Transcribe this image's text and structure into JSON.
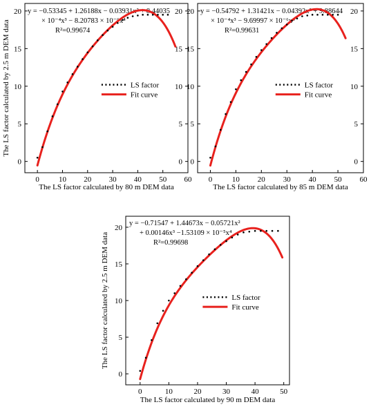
{
  "chart_data": [
    {
      "type": "line",
      "xlabel": "The LS factor calculated by 80 m DEM data",
      "ylabel": "The LS factor calculated by 2.5 m DEM data",
      "xlim": [
        -5,
        60
      ],
      "ylim": [
        -1.5,
        21
      ],
      "xticks": [
        0,
        10,
        20,
        30,
        40,
        50,
        60
      ],
      "yticks": [
        0,
        5,
        10,
        15,
        20
      ],
      "right_axis_ticks": [
        0,
        5,
        10,
        15,
        20
      ],
      "equation_line1": "y = −0.53345 + 1.26188x − 0.03931x² + 8.44035",
      "equation_line2": "× 10⁻⁴x³ − 8.20783 × 10⁻⁶x⁴",
      "r2": "R²=0.99674",
      "legend": [
        "LS factor",
        "Fit curve"
      ],
      "legend_position": "center-right",
      "coef": [
        -0.53345,
        1.26188,
        -0.03931,
        0.000844035,
        -8.20783e-06
      ],
      "fit_x_range": [
        0,
        55
      ],
      "series": [
        {
          "name": "LS factor",
          "style": "dotted",
          "color": "#000000",
          "x": [
            0,
            2,
            4,
            6,
            8,
            10,
            12,
            14,
            16,
            18,
            20,
            22,
            24,
            26,
            28,
            30,
            32,
            34,
            36,
            38,
            40,
            42,
            44,
            46,
            48,
            50,
            52
          ],
          "y": [
            0.5,
            1.9,
            4.0,
            6.0,
            7.6,
            9.3,
            10.5,
            11.6,
            12.6,
            13.6,
            14.5,
            15.3,
            16.1,
            16.8,
            17.4,
            17.9,
            18.4,
            18.8,
            19.1,
            19.3,
            19.4,
            19.5,
            19.5,
            19.5,
            19.5,
            19.5,
            19.5
          ]
        },
        {
          "name": "Fit curve",
          "style": "solid",
          "color": "#e8211d"
        }
      ]
    },
    {
      "type": "line",
      "xlabel": "The LS factor calculated by 85 m DEM data",
      "ylabel": "",
      "xlim": [
        -5,
        60
      ],
      "ylim": [
        -1.5,
        21
      ],
      "xticks": [
        0,
        10,
        20,
        30,
        40,
        50,
        60
      ],
      "yticks": [
        0,
        5,
        10,
        15,
        20
      ],
      "right_axis_ticks": [
        0,
        5,
        10,
        15,
        20
      ],
      "equation_line1": "y = −0.54792 + 1.31421x − 0.04392x² + 9.88644",
      "equation_line2": "× 10⁻⁴x³ − 9.69997 × 10⁻⁶x⁴",
      "r2": "R²=0.99631",
      "legend": [
        "LS factor",
        "Fit curve"
      ],
      "legend_position": "center-right",
      "coef": [
        -0.54792,
        1.31421,
        -0.04392,
        0.000988644,
        -9.69997e-06
      ],
      "fit_x_range": [
        0,
        53
      ],
      "series": [
        {
          "name": "LS factor",
          "style": "dotted",
          "color": "#000000",
          "x": [
            0,
            2,
            4,
            6,
            8,
            10,
            12,
            14,
            16,
            18,
            20,
            22,
            24,
            26,
            28,
            30,
            32,
            34,
            36,
            38,
            40,
            42,
            44,
            46,
            48,
            50
          ],
          "y": [
            0.5,
            2.0,
            4.2,
            6.3,
            7.9,
            9.6,
            10.8,
            11.9,
            12.9,
            13.9,
            14.8,
            15.6,
            16.4,
            17.1,
            17.7,
            18.2,
            18.7,
            19.0,
            19.3,
            19.4,
            19.5,
            19.5,
            19.5,
            19.5,
            19.5,
            19.5
          ]
        },
        {
          "name": "Fit curve",
          "style": "solid",
          "color": "#e8211d"
        }
      ]
    },
    {
      "type": "line",
      "xlabel": "The LS factor calculated by 90 m DEM data",
      "ylabel": "The LS factor calculated by 2.5 m DEM data",
      "xlim": [
        -5,
        52
      ],
      "ylim": [
        -1.5,
        21.5
      ],
      "xticks": [
        0,
        10,
        20,
        30,
        40,
        50
      ],
      "yticks": [
        0,
        5,
        10,
        15,
        20
      ],
      "right_axis_ticks": [],
      "equation_line1": "y = −0.71547 + 1.44673x − 0.05721x²",
      "equation_line2": "+ 0.00146x³ −1.53109 × 10⁻⁵x⁴",
      "r2": "R²=0.99698",
      "legend": [
        "LS factor",
        "Fit curve"
      ],
      "legend_position": "center-right",
      "coef": [
        -0.71547,
        1.44673,
        -0.05721,
        0.00146,
        -1.53109e-05
      ],
      "fit_x_range": [
        0,
        49.5
      ],
      "series": [
        {
          "name": "LS factor",
          "style": "dotted",
          "color": "#000000",
          "x": [
            0,
            2,
            4,
            6,
            8,
            10,
            12,
            14,
            16,
            18,
            20,
            22,
            24,
            26,
            28,
            30,
            32,
            34,
            36,
            38,
            40,
            42,
            44,
            46,
            48
          ],
          "y": [
            0.4,
            2.2,
            4.6,
            6.9,
            8.6,
            10.0,
            11.0,
            12.0,
            12.9,
            13.8,
            14.7,
            15.5,
            16.3,
            17.0,
            17.6,
            18.1,
            18.6,
            19.0,
            19.3,
            19.4,
            19.5,
            19.5,
            19.5,
            19.5,
            19.5
          ]
        },
        {
          "name": "Fit curve",
          "style": "solid",
          "color": "#e8211d"
        }
      ]
    }
  ]
}
